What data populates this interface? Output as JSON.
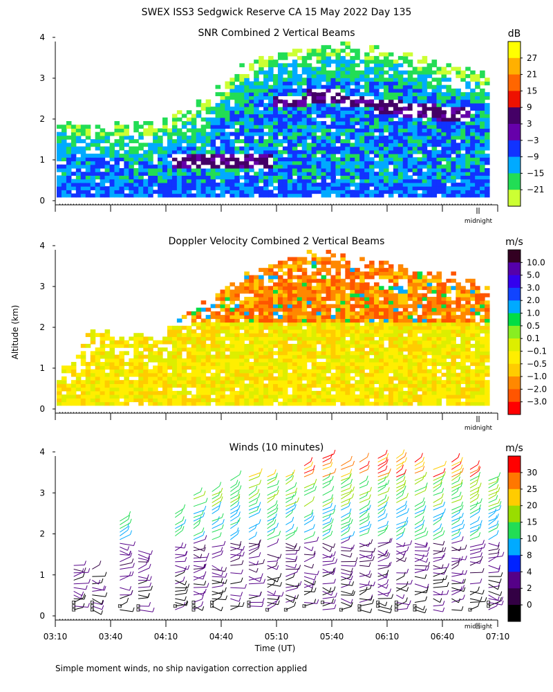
{
  "page": {
    "title": "SWEX ISS3 Sedgwick Reserve CA  15 May 2022 Day 135",
    "ylabel": "Altitude (km)",
    "xlabel": "Time (UT)",
    "footnote": "Simple moment winds, no ship navigation correction applied",
    "midnight_label": "midnight"
  },
  "chart_data": [
    {
      "type": "heatmap",
      "title": "SNR Combined 2 Vertical Beams",
      "units": "dB",
      "ylim": [
        0,
        4
      ],
      "y_ticks": [
        "0",
        "1",
        "2",
        "3",
        "4"
      ],
      "x_range": [
        "03:10",
        "07:10"
      ],
      "colorbar": {
        "labels": [
          "27",
          "21",
          "15",
          "9",
          "3",
          "−3",
          "−9",
          "−15",
          "−21"
        ],
        "colors": [
          "#ffff00",
          "#ffb000",
          "#ff6600",
          "#ee1100",
          "#440066",
          "#6600aa",
          "#1133ff",
          "#00aaff",
          "#22dd55",
          "#ccff33"
        ]
      },
      "echo_layer_top_km": [
        2.0,
        1.9,
        1.9,
        1.9,
        2.3,
        2.9,
        3.6,
        3.8,
        3.9,
        3.9,
        3.8,
        3.6,
        3.4,
        3.2
      ],
      "strong_layer_km": [
        null,
        null,
        null,
        null,
        1.0,
        1.0,
        1.0,
        2.5,
        2.6,
        2.5,
        2.4,
        2.3,
        2.2,
        null
      ]
    },
    {
      "type": "heatmap",
      "title": "Doppler Velocity Combined 2 Vertical Beams",
      "units": "m/s",
      "ylim": [
        0,
        4
      ],
      "y_ticks": [
        "0",
        "1",
        "2",
        "3",
        "4"
      ],
      "x_range": [
        "03:10",
        "07:10"
      ],
      "colorbar": {
        "labels": [
          "10.0",
          "5.0",
          "3.0",
          "2.0",
          "1.0",
          "0.5",
          "0.1",
          "−0.1",
          "−0.5",
          "−1.0",
          "−2.0",
          "−3.0"
        ],
        "colors": [
          "#330022",
          "#5500aa",
          "#3300ee",
          "#1144ff",
          "#00aaff",
          "#00dd44",
          "#88ee22",
          "#ddee00",
          "#ffee00",
          "#ffcc00",
          "#ff8800",
          "#ff5500",
          "#ff0000"
        ]
      },
      "echo_layer_top_km": [
        0.8,
        1.9,
        1.8,
        1.8,
        2.4,
        3.0,
        3.5,
        3.9,
        3.9,
        3.8,
        3.6,
        3.5,
        3.3,
        3.1
      ]
    },
    {
      "type": "scatter",
      "title": "Winds (10 minutes)",
      "units": "m/s",
      "ylim": [
        0,
        4
      ],
      "y_ticks": [
        "0",
        "1",
        "2",
        "3",
        "4"
      ],
      "x_ticks": [
        "03:10",
        "03:40",
        "04:10",
        "04:40",
        "05:10",
        "05:40",
        "06:10",
        "06:40",
        "07:10"
      ],
      "colorbar": {
        "labels": [
          "30",
          "25",
          "20",
          "15",
          "10",
          "8",
          "4",
          "2",
          "0"
        ],
        "colors": [
          "#ff0000",
          "#ff7700",
          "#ffcc00",
          "#99dd00",
          "#22dd55",
          "#00aaff",
          "#0022ff",
          "#550088",
          "#330044",
          "#000000"
        ]
      },
      "profile_times": [
        "03:20",
        "03:30",
        "03:45",
        "03:55",
        "04:15",
        "04:25",
        "04:35",
        "04:45",
        "04:55",
        "05:05",
        "05:15",
        "05:25",
        "05:35",
        "05:45",
        "05:55",
        "06:05",
        "06:15",
        "06:25",
        "06:35",
        "06:45",
        "06:55",
        "07:05"
      ],
      "profile_top_km": [
        1.5,
        1.2,
        2.4,
        1.6,
        2.6,
        3.0,
        3.2,
        3.3,
        3.4,
        3.5,
        3.5,
        3.8,
        3.9,
        3.7,
        3.8,
        3.9,
        3.9,
        3.8,
        3.6,
        3.8,
        3.6,
        3.3
      ]
    }
  ]
}
